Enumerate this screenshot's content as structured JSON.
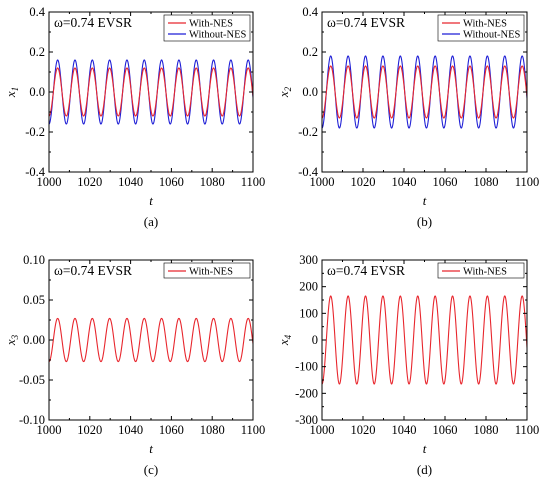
{
  "chart_data": [
    {
      "type": "line",
      "caption": "(a)",
      "annotation": "ω=0.74  EVSR",
      "xlabel": "t",
      "ylabel": "x",
      "ylabel_sub": "1",
      "xlim": [
        1000,
        1100
      ],
      "ylim": [
        -0.4,
        0.4
      ],
      "xticks": [
        "1000",
        "1020",
        "1040",
        "1060",
        "1080",
        "1100"
      ],
      "yticks": [
        "0.4",
        "0.2",
        "0.0",
        "-0.2",
        "-0.4"
      ],
      "legend_position": "top-right",
      "signal": {
        "omega": 0.74,
        "t_start": 1000,
        "t_end": 1100
      },
      "series": [
        {
          "name": "With-NES",
          "color": "#e8262d",
          "amplitude": 0.12
        },
        {
          "name": "Without-NES",
          "color": "#1f1fd6",
          "amplitude": 0.16
        }
      ]
    },
    {
      "type": "line",
      "caption": "(b)",
      "annotation": "ω=0.74  EVSR",
      "xlabel": "t",
      "ylabel": "x",
      "ylabel_sub": "2",
      "xlim": [
        1000,
        1100
      ],
      "ylim": [
        -0.4,
        0.4
      ],
      "xticks": [
        "1000",
        "1020",
        "1040",
        "1060",
        "1080",
        "1100"
      ],
      "yticks": [
        "0.4",
        "0.2",
        "0.0",
        "-0.2",
        "-0.4"
      ],
      "legend_position": "top-right",
      "signal": {
        "omega": 0.74,
        "t_start": 1000,
        "t_end": 1100
      },
      "series": [
        {
          "name": "With-NES",
          "color": "#e8262d",
          "amplitude": 0.13
        },
        {
          "name": "Without-NES",
          "color": "#1f1fd6",
          "amplitude": 0.18
        }
      ]
    },
    {
      "type": "line",
      "caption": "(c)",
      "annotation": "ω=0.74  EVSR",
      "xlabel": "t",
      "ylabel": "x",
      "ylabel_sub": "3",
      "xlim": [
        1000,
        1100
      ],
      "ylim": [
        -0.1,
        0.1
      ],
      "xticks": [
        "1000",
        "1020",
        "1040",
        "1060",
        "1080",
        "1100"
      ],
      "yticks": [
        "0.10",
        "0.05",
        "0.00",
        "-0.05",
        "-0.10"
      ],
      "legend_position": "top-right",
      "signal": {
        "omega": 0.74,
        "t_start": 1000,
        "t_end": 1100
      },
      "series": [
        {
          "name": "With-NES",
          "color": "#e8262d",
          "amplitude": 0.027
        }
      ]
    },
    {
      "type": "line",
      "caption": "(d)",
      "annotation": "ω=0.74  EVSR",
      "xlabel": "t",
      "ylabel": "x",
      "ylabel_sub": "4",
      "xlim": [
        1000,
        1100
      ],
      "ylim": [
        -300,
        300
      ],
      "xticks": [
        "1000",
        "1020",
        "1040",
        "1060",
        "1080",
        "1100"
      ],
      "yticks": [
        "300",
        "200",
        "100",
        "0",
        "-100",
        "-200",
        "-300"
      ],
      "legend_position": "top-right",
      "signal": {
        "omega": 0.74,
        "t_start": 1000,
        "t_end": 1100
      },
      "series": [
        {
          "name": "With-NES",
          "color": "#e8262d",
          "amplitude": 165
        }
      ]
    }
  ]
}
